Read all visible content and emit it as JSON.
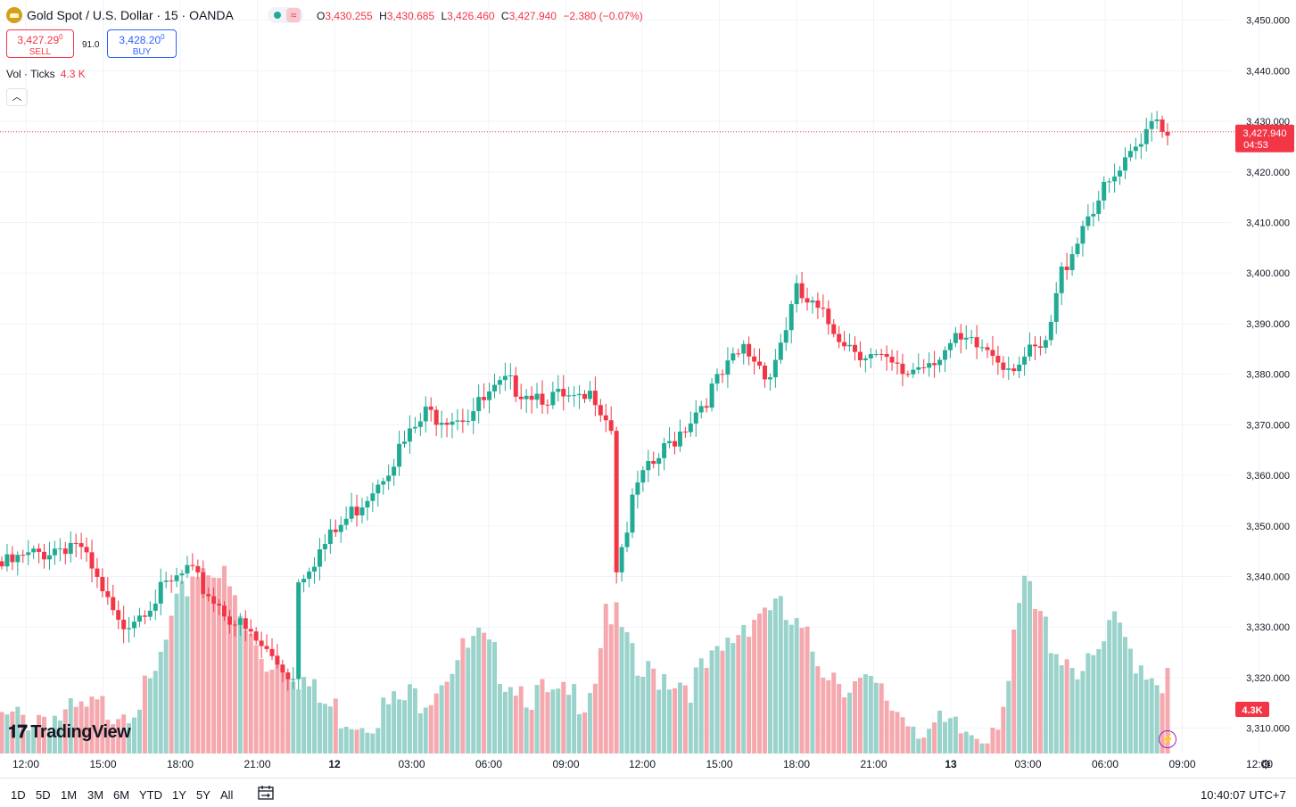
{
  "header": {
    "symbol_title": "Gold Spot / U.S. Dollar · 15 · OANDA",
    "status_icon": "market-status-icon",
    "ohlc": {
      "open_label": "O",
      "open": "3,430.255",
      "high_label": "H",
      "high": "3,430.685",
      "low_label": "L",
      "low": "3,426.460",
      "close_label": "C",
      "close": "3,427.940",
      "change": "−2.380 (−0.07%)"
    }
  },
  "trade": {
    "sell_price": "3,427.29",
    "sell_price_sup": "0",
    "sell_label": "SELL",
    "spread": "91.0",
    "buy_price": "3,428.20",
    "buy_price_sup": "0",
    "buy_label": "BUY"
  },
  "volume_legend": {
    "label": "Vol · Ticks",
    "value": "4.3 K"
  },
  "colors": {
    "up": "#22ab94",
    "down": "#f23645",
    "vol_up": "#9ad3cb",
    "vol_down": "#f5a8ae",
    "grid": "#f0f3fa"
  },
  "chart_data": {
    "type": "candlestick",
    "y_ticks": [
      "3,310.000",
      "3,320.000",
      "3,330.000",
      "3,340.000",
      "3,350.000",
      "3,360.000",
      "3,370.000",
      "3,380.000",
      "3,390.000",
      "3,400.000",
      "3,410.000",
      "3,420.000",
      "3,430.000",
      "3,440.000",
      "3,450.000"
    ],
    "ylim": [
      3305,
      3454
    ],
    "x_ticks": [
      "12:00",
      "15:00",
      "18:00",
      "21:00",
      "12",
      "03:00",
      "06:00",
      "09:00",
      "12:00",
      "15:00",
      "18:00",
      "21:00",
      "13",
      "03:00",
      "06:00",
      "09:00",
      "12:00"
    ],
    "last_price_label": "3,427.940",
    "countdown": "04:53",
    "volume_last_label": "4.3K",
    "close_anchors": [
      [
        0,
        3342
      ],
      [
        14,
        3347
      ],
      [
        22,
        3330
      ],
      [
        35,
        3341
      ],
      [
        45,
        3330
      ],
      [
        55,
        3320
      ],
      [
        56,
        3340
      ],
      [
        68,
        3355
      ],
      [
        80,
        3372
      ],
      [
        88,
        3372
      ],
      [
        95,
        3378
      ],
      [
        109,
        3374
      ],
      [
        112,
        3376
      ],
      [
        115,
        3370
      ],
      [
        116,
        3342
      ],
      [
        120,
        3358
      ],
      [
        140,
        3385
      ],
      [
        145,
        3380
      ],
      [
        150,
        3396
      ],
      [
        160,
        3386
      ],
      [
        170,
        3380
      ],
      [
        180,
        3386
      ],
      [
        186,
        3385
      ],
      [
        190,
        3382
      ],
      [
        197,
        3385
      ],
      [
        200,
        3400
      ],
      [
        205,
        3412
      ],
      [
        215,
        3425
      ],
      [
        217,
        3432
      ],
      [
        220,
        3428
      ]
    ],
    "volume_profile": [
      [
        0,
        6
      ],
      [
        8,
        8
      ],
      [
        12,
        7
      ],
      [
        20,
        9
      ],
      [
        24,
        10
      ],
      [
        28,
        12
      ],
      [
        32,
        25
      ],
      [
        36,
        36
      ],
      [
        40,
        38
      ],
      [
        43,
        32
      ],
      [
        46,
        24
      ],
      [
        50,
        18
      ],
      [
        52,
        20
      ],
      [
        56,
        16
      ],
      [
        60,
        10
      ],
      [
        64,
        8
      ],
      [
        68,
        7
      ],
      [
        75,
        10
      ],
      [
        80,
        12
      ],
      [
        85,
        18
      ],
      [
        90,
        22
      ],
      [
        95,
        16
      ],
      [
        100,
        12
      ],
      [
        105,
        10
      ],
      [
        110,
        12
      ],
      [
        112,
        16
      ],
      [
        114,
        30
      ],
      [
        117,
        24
      ],
      [
        120,
        15
      ],
      [
        125,
        16
      ],
      [
        130,
        14
      ],
      [
        135,
        18
      ],
      [
        140,
        26
      ],
      [
        145,
        30
      ],
      [
        150,
        24
      ],
      [
        155,
        18
      ],
      [
        160,
        14
      ],
      [
        165,
        12
      ],
      [
        170,
        8
      ],
      [
        175,
        5
      ],
      [
        180,
        4
      ],
      [
        185,
        4
      ],
      [
        188,
        8
      ],
      [
        190,
        14
      ],
      [
        193,
        34
      ],
      [
        195,
        28
      ],
      [
        200,
        20
      ],
      [
        205,
        16
      ],
      [
        210,
        25
      ],
      [
        215,
        18
      ],
      [
        220,
        14
      ]
    ],
    "volume_max": 38
  },
  "bottom_bar": {
    "ranges": [
      "1D",
      "5D",
      "1M",
      "3M",
      "6M",
      "YTD",
      "1Y",
      "5Y",
      "All"
    ],
    "calendar_icon": "calendar-range-icon",
    "clock": "10:40:07 UTC+7"
  },
  "brand": {
    "logo_text": "TradingView"
  }
}
